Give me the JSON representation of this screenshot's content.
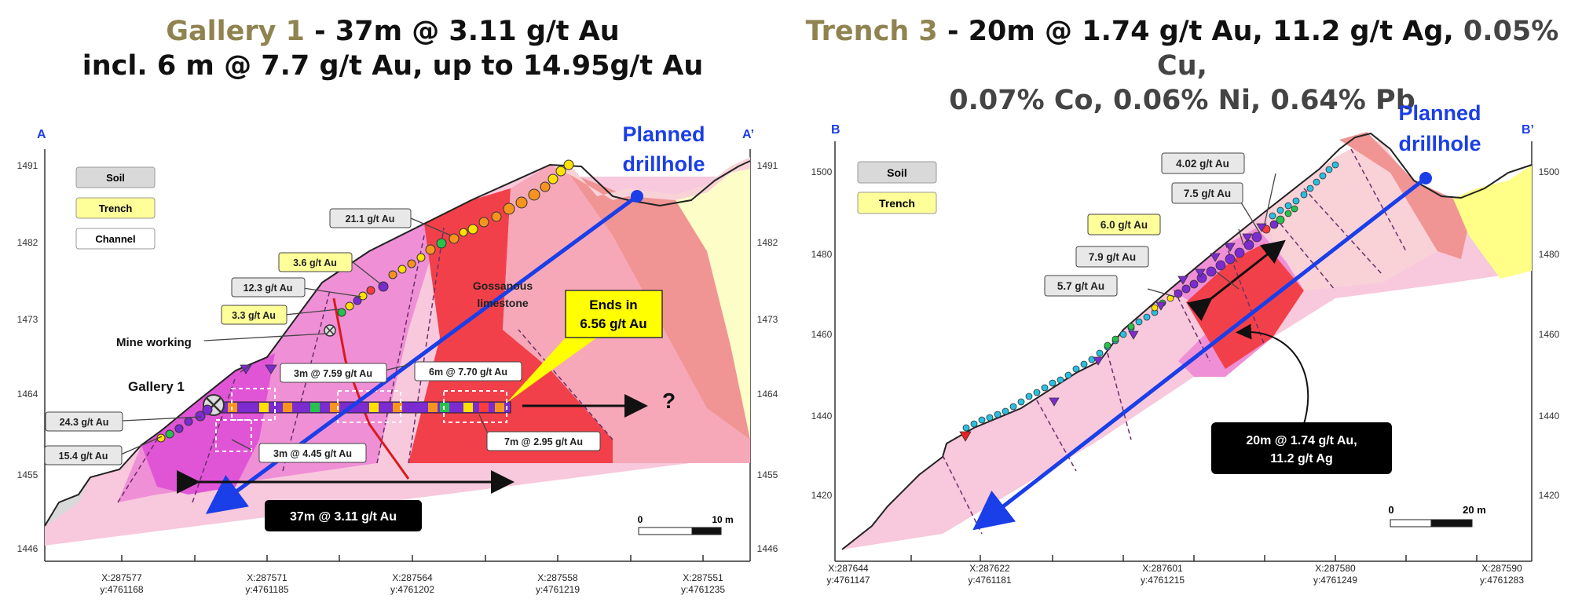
{
  "left": {
    "title_hl": "Gallery 1",
    "title_rest": " - 37m @ 3.11 g/t Au",
    "title_line2": "incl. 6 m @ 7.7 g/t Au,  up to 14.95g/t Au",
    "section_start": "A",
    "section_end": "A’",
    "elev_labels": [
      "1491",
      "1482",
      "1473",
      "1464",
      "1455",
      "1446"
    ],
    "x_labels": [
      [
        "X:287577",
        "y:4761168"
      ],
      [
        "X:287571",
        "y:4761185"
      ],
      [
        "X:287564",
        "y:4761202"
      ],
      [
        "X:287558",
        "y:4761219"
      ],
      [
        "X:287551",
        "y:4761235"
      ]
    ],
    "legend": [
      "Soil",
      "Trench",
      "Channel"
    ],
    "planned_1": "Planned",
    "planned_2": "drillhole",
    "gossan_1": "Gossanous",
    "gossan_2": "limestone",
    "ends_1": "Ends in",
    "ends_2": "6.56 g/t Au",
    "question": "?",
    "mine_working": "Mine working",
    "gallery_label": "Gallery 1",
    "samples": [
      "21.1 g/t Au",
      "3.6 g/t Au",
      "12.3 g/t Au",
      "3.3 g/t Au",
      "24.3 g/t Au",
      "15.4 g/t Au"
    ],
    "intervals": [
      "3m @ 7.59 g/t Au",
      "6m @ 7.70 g/t Au",
      "3m @ 4.45 g/t Au",
      "7m @ 2.95  g/t Au"
    ],
    "result": "37m @ 3.11 g/t Au",
    "scale_0": "0",
    "scale_1": "10 m",
    "colors": {
      "soil": "#d9d9d9",
      "trench": "#ffff99",
      "pink_light": "#f8c8dc",
      "pink": "#ef8fd6",
      "magenta": "#e054d6",
      "red": "#f2404a",
      "salmon": "#f09494",
      "pale_pink": "#f9d2d8",
      "cream": "#fdfdc8",
      "blue": "#1a3ee8"
    }
  },
  "right": {
    "title_hl": "Trench 3",
    "title_rest": " - 20m @ 1.74 g/t Au, 11.2 g/t Ag,",
    "title_rest2": " 0.05% Cu,",
    "title_line2": "0.07% Co, 0.06% Ni, 0.64% Pb",
    "section_start": "B",
    "section_end": "B’",
    "elev_labels": [
      "1500",
      "1480",
      "1460",
      "1440",
      "1420"
    ],
    "x_labels": [
      [
        "X:287644",
        "y:4761147"
      ],
      [
        "X:287622",
        "y:4761181"
      ],
      [
        "X:287601",
        "y:4761215"
      ],
      [
        "X:287580",
        "y:4761249"
      ],
      [
        "X:287590",
        "y:4761283"
      ]
    ],
    "legend": [
      "Soil",
      "Trench"
    ],
    "planned_1": "Planned",
    "planned_2": "drillhole",
    "samples": [
      "4.02 g/t Au",
      "7.5 g/t Au",
      "6.0 g/t Au",
      "7.9 g/t Au",
      "5.7 g/t Au"
    ],
    "result_1": "20m @ 1.74 g/t Au,",
    "result_2": "11.2 g/t Ag",
    "scale_0": "0",
    "scale_1": "20 m"
  }
}
